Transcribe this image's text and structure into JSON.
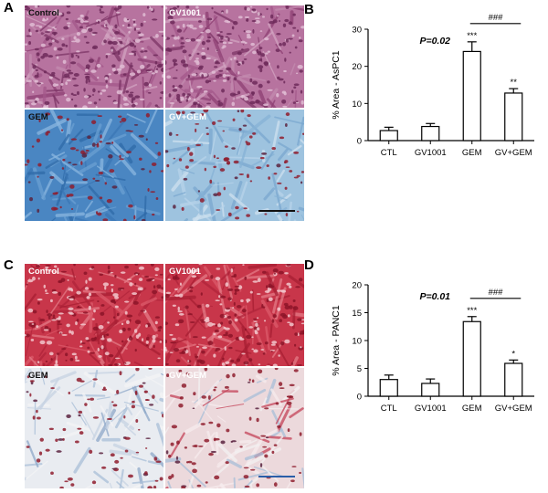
{
  "panels": {
    "A": {
      "letter": "A",
      "tiles": [
        {
          "label": "Control",
          "stain": "purple",
          "label_color": "dark"
        },
        {
          "label": "GV1001",
          "stain": "purple",
          "label_color": "light"
        },
        {
          "label": "GEM",
          "stain": "blue",
          "label_color": "dark"
        },
        {
          "label": "GV+GEM",
          "stain": "lightblue",
          "label_color": "light"
        }
      ]
    },
    "B": {
      "letter": "B"
    },
    "C": {
      "letter": "C",
      "tiles": [
        {
          "label": "Control",
          "stain": "red",
          "label_color": "light"
        },
        {
          "label": "GV1001",
          "stain": "red",
          "label_color": "light"
        },
        {
          "label": "GEM",
          "stain": "whiteblue",
          "label_color": "dark"
        },
        {
          "label": "GV+GEM",
          "stain": "whitered",
          "label_color": "light"
        }
      ]
    },
    "D": {
      "letter": "D"
    }
  },
  "colors": {
    "purple_base": "#9b4a7c",
    "blue_base": "#3f7fbf",
    "red_base": "#c8283c",
    "scale_bar_A": "#111111",
    "scale_bar_C": "#2b5ea8"
  },
  "chart_data": [
    {
      "type": "bar",
      "panel": "B",
      "categories": [
        "CTL",
        "GV1001",
        "GEM",
        "GV+GEM"
      ],
      "values": [
        2.7,
        3.8,
        24.0,
        12.8
      ],
      "errors": [
        0.9,
        0.8,
        2.6,
        1.2
      ],
      "significance": [
        "",
        "",
        "***",
        "**"
      ],
      "ylabel": "% Area - AsPC1",
      "ylim": [
        0,
        30
      ],
      "yticks": [
        0,
        10,
        20,
        30
      ],
      "p_text": "P=0.02",
      "bracket_label": "###",
      "bracket_between": [
        2,
        3
      ],
      "grid": false
    },
    {
      "type": "bar",
      "panel": "D",
      "categories": [
        "CTL",
        "GV1001",
        "GEM",
        "GV+GEM"
      ],
      "values": [
        3.0,
        2.3,
        13.4,
        5.9
      ],
      "errors": [
        0.8,
        0.8,
        0.9,
        0.6
      ],
      "significance": [
        "",
        "",
        "***",
        "*"
      ],
      "ylabel": "% Area - PANC1",
      "ylim": [
        0,
        20
      ],
      "yticks": [
        0,
        5,
        10,
        15,
        20
      ],
      "p_text": "P=0.01",
      "bracket_label": "###",
      "bracket_between": [
        2,
        3
      ],
      "grid": false
    }
  ]
}
